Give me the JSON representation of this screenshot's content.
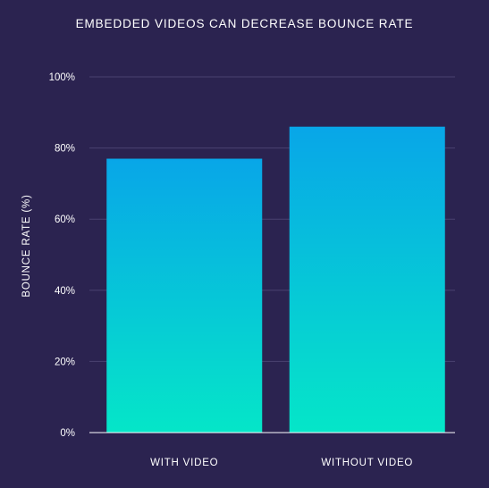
{
  "chart_data": {
    "type": "bar",
    "title": "EMBEDDED VIDEOS CAN DECREASE BOUNCE RATE",
    "xlabel": "",
    "ylabel": "BOUNCE RATE (%)",
    "categories": [
      "WITH VIDEO",
      "WITHOUT VIDEO"
    ],
    "values": [
      77,
      86
    ],
    "ylim": [
      0,
      100
    ],
    "yticks": [
      0,
      20,
      40,
      60,
      80,
      100
    ],
    "ytick_labels": [
      "0%",
      "20%",
      "40%",
      "60%",
      "80%",
      "100%"
    ],
    "grid": true,
    "legend": "none",
    "colors": {
      "background": "#2b2350",
      "bar_top": "#08a6e8",
      "bar_bottom": "#05e6c8",
      "gridline": "#4a4270",
      "axis": "#ffffff"
    }
  }
}
